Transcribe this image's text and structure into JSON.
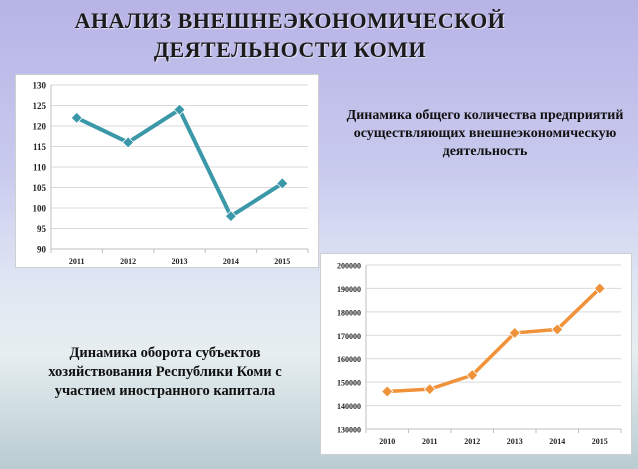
{
  "page": {
    "title": "АНАЛИЗ  ВНЕШНЕЭКОНОМИЧЕСКОЙ ДЕЯТЕЛЬНОСТИ  КОМИ"
  },
  "captions": {
    "top": "Динамика общего количества предприятий осуществляющих внешнеэкономическую деятельность",
    "bottom": "Динамика оборота субъектов хозяйствования Республики Коми с участием иностранного капитала"
  },
  "chart_data": [
    {
      "type": "line",
      "x": [
        "2011",
        "2012",
        "2013",
        "2014",
        "2015"
      ],
      "values": [
        122,
        116,
        124,
        98,
        106
      ],
      "ylim": [
        90,
        130
      ],
      "yticks": [
        90,
        95,
        100,
        105,
        110,
        115,
        120,
        125,
        130
      ],
      "grid": true,
      "legend": "none",
      "color": "#3a98a9"
    },
    {
      "type": "line",
      "x": [
        "2010",
        "2011",
        "2012",
        "2013",
        "2014",
        "2015"
      ],
      "values": [
        146000,
        147000,
        153000,
        171000,
        172500,
        190000
      ],
      "ylim": [
        130000,
        200000
      ],
      "yticks": [
        130000,
        140000,
        150000,
        160000,
        170000,
        180000,
        190000,
        200000
      ],
      "grid": true,
      "legend": "none",
      "color": "#f0923a"
    }
  ]
}
